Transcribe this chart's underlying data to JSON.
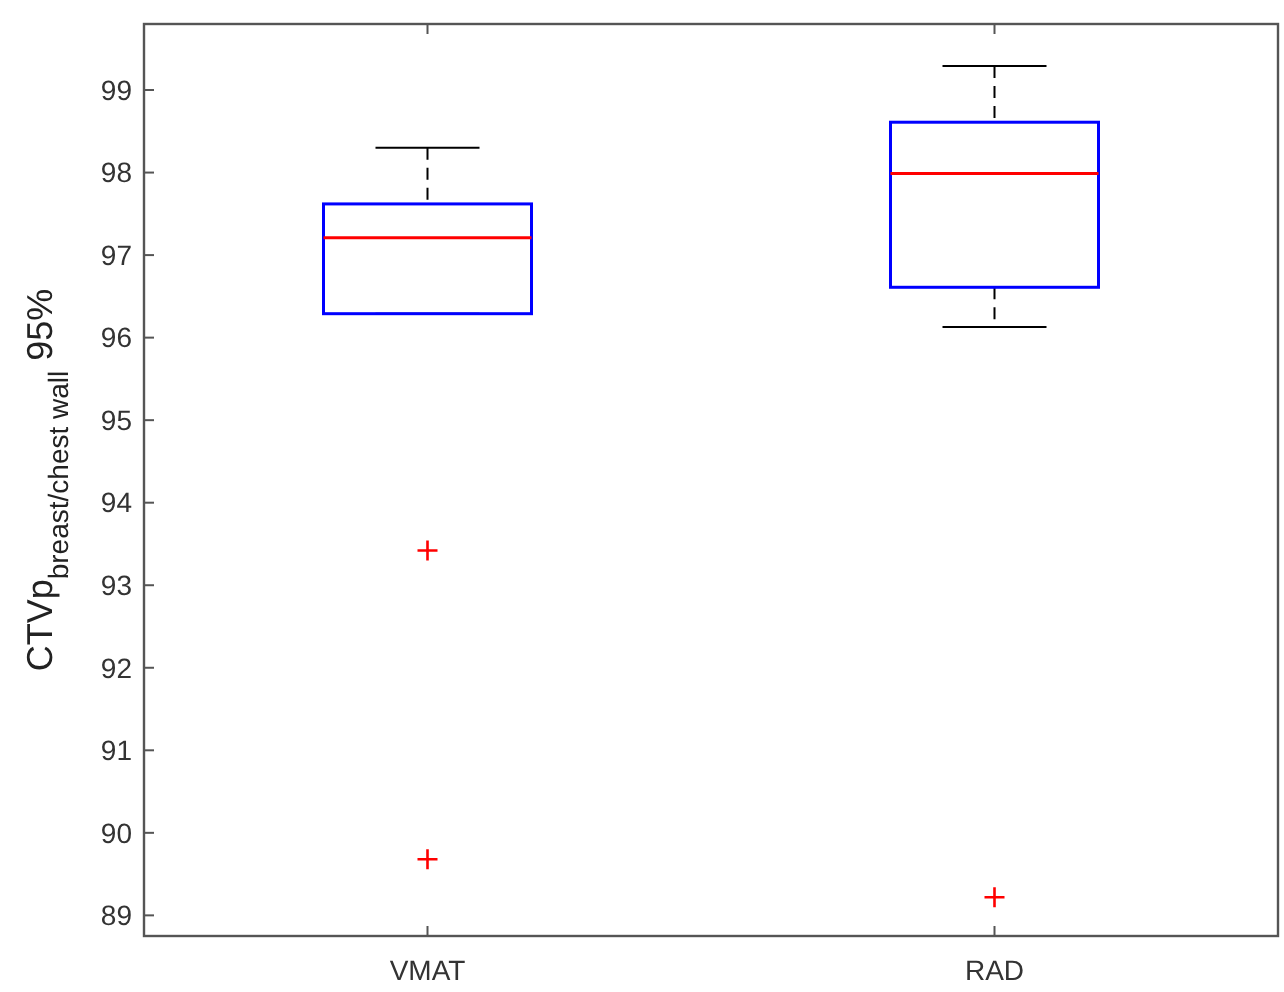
{
  "chart_data": {
    "type": "box",
    "ylabel": "CTVp$_{breast/chest wall}$ 95%",
    "categories": [
      "VMAT",
      "RAD"
    ],
    "series": [
      {
        "color": "#0000ff",
        "boxes": [
          {
            "low": 96.29,
            "q1": 96.29,
            "median": 97.21,
            "q3": 97.62,
            "high": 98.3,
            "outliers": [
              93.42,
              89.68
            ]
          },
          {
            "low": 96.13,
            "q1": 96.61,
            "median": 97.99,
            "q3": 98.61,
            "high": 99.29,
            "outliers": [
              89.22
            ]
          }
        ]
      }
    ],
    "ylim": [
      88.75,
      99.8
    ],
    "yticks": [
      89,
      90,
      91,
      92,
      93,
      94,
      95,
      96,
      97,
      98,
      99
    ]
  }
}
